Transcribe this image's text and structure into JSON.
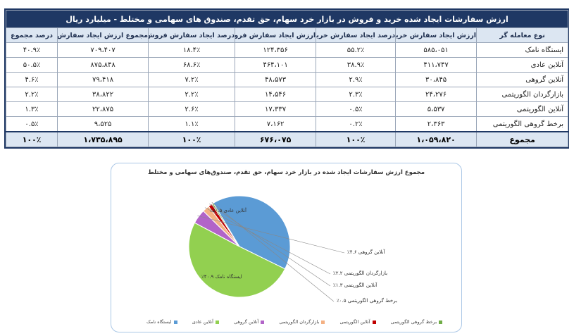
{
  "table": {
    "title": "ارزش سفارشات ایجاد شده خرید و فروش در بازار خرد سهام، حق تقدم، صندوق های سهامی و مختلط - میلیارد ریال",
    "headers": [
      "نوع معامله گر",
      "ارزش ایجاد سفارش خرید",
      "درصد ایجاد سفارش خرید",
      "ارزش ایجاد سفارش فروش",
      "درصد ایجاد سفارش فروش",
      "مجموع ارزش ایجاد سفارش",
      "درصد مجموع"
    ],
    "rows": [
      [
        "ایستگاه نامک",
        "۵۸۵،۰۵۱",
        "۵۵.۲٪",
        "۱۲۴،۳۵۶",
        "۱۸.۴٪",
        "۷۰۹،۴۰۷",
        "۴۰.۹٪"
      ],
      [
        "آنلاین عادی",
        "۴۱۱،۷۴۷",
        "۳۸.۹٪",
        "۴۶۴،۱۰۱",
        "۶۸.۶٪",
        "۸۷۵،۸۴۸",
        "۵۰.۵٪"
      ],
      [
        "آنلاین گروهی",
        "۳۰،۸۴۵",
        "۲.۹٪",
        "۴۸،۵۷۳",
        "۷.۲٪",
        "۷۹،۴۱۸",
        "۴.۶٪"
      ],
      [
        "بازارگردان الگوریتمی",
        "۲۴،۲۷۶",
        "۲.۳٪",
        "۱۴،۵۴۶",
        "۲.۲٪",
        "۳۸،۸۲۲",
        "۲.۲٪"
      ],
      [
        "آنلاین الگوریتمی",
        "۵،۵۳۷",
        "۰.۵٪",
        "۱۷،۳۳۷",
        "۲.۶٪",
        "۲۲،۸۷۵",
        "۱.۳٪"
      ],
      [
        "برخط گروهی الگوریتمی",
        "۲،۳۶۳",
        "۰.۲٪",
        "۷،۱۶۲",
        "۱.۱٪",
        "۹،۵۲۵",
        "۰.۵٪"
      ]
    ],
    "total": [
      "مجموع",
      "۱،۰۵۹،۸۲۰",
      "۱۰۰٪",
      "۶۷۶،۰۷۵",
      "۱۰۰٪",
      "۱،۷۳۵،۸۹۵",
      "۱۰۰٪"
    ]
  },
  "chart_data": {
    "type": "pie",
    "title": "مجموع ارزش سفارشات ایجاد شده در بازار خرد سهام، حق تقدم، صندوق‌های سهامی و مختلط",
    "slices": [
      {
        "name": "ایستگاه نامک",
        "value": 40.9,
        "label": "ایستگاه نامک ۴۰.۹٪",
        "color": "#5b9bd5"
      },
      {
        "name": "آنلاین عادی",
        "value": 50.5,
        "label": "آنلاین عادی ۵۰.۵٪",
        "color": "#92d050"
      },
      {
        "name": "آنلاین گروهی",
        "value": 4.6,
        "label": "آنلاین گروهی ۴.۶٪",
        "color": "#b264c8"
      },
      {
        "name": "بازارگردان الگوریتمی",
        "value": 2.2,
        "label": "بازارگردان الگوریتمی ۲.۲٪",
        "color": "#f4b183"
      },
      {
        "name": "آنلاین الگوریتمی",
        "value": 1.3,
        "label": "آنلاین الگوریتمی ۱.۳٪",
        "color": "#c00000"
      },
      {
        "name": "برخط گروهی الگوریتمی",
        "value": 0.5,
        "label": "برخط گروهی الگوریتمی ۰.۵٪",
        "color": "#70ad47"
      }
    ]
  }
}
